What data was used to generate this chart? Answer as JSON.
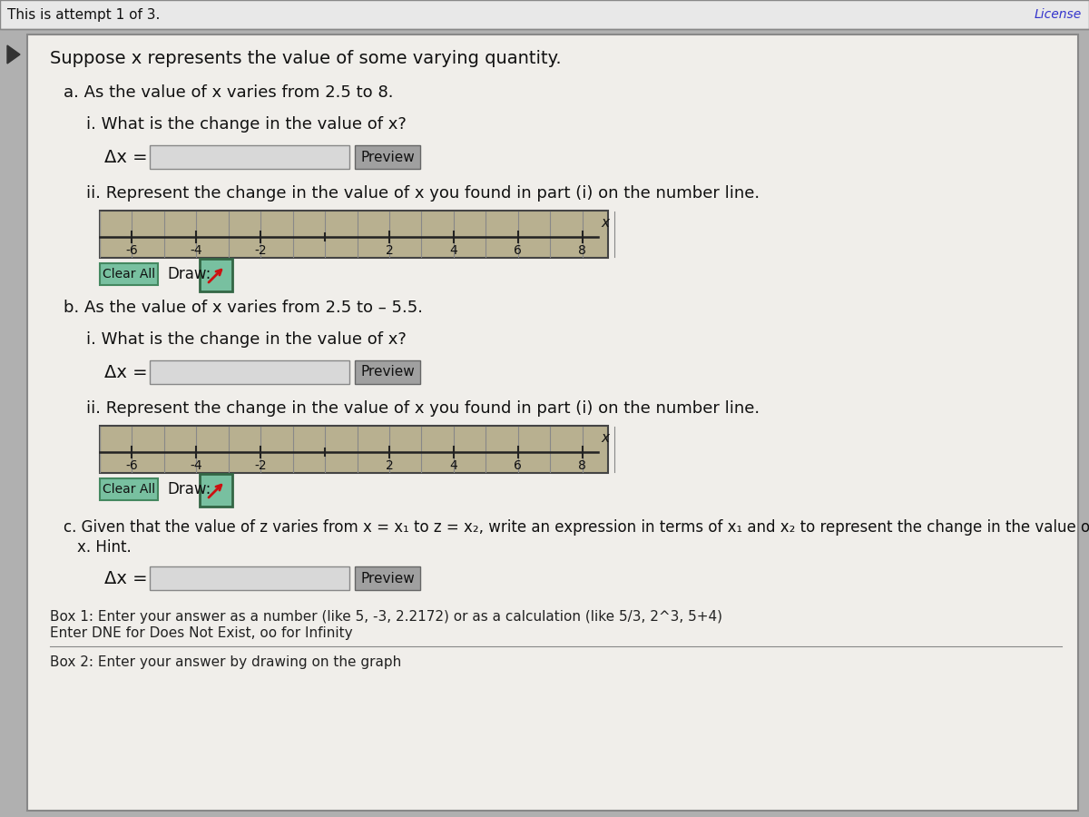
{
  "bg_outer": "#b0b0b0",
  "bg_title_bar": "#e8e8e8",
  "bg_content": "#dcdcdc",
  "bg_white_panel": "#f0eeea",
  "title_text": "This is attempt 1 of 3.",
  "license_text": "License",
  "header_text": "Suppose x represents the value of some varying quantity.",
  "part_a_text": "a. As the value of x varies from 2.5 to 8.",
  "part_a_i": "i. What is the change in the value of x?",
  "part_a_ii": "ii. Represent the change in the value of x you found in part (i) on the number line.",
  "part_b_text": "b. As the value of x varies from 2.5 to – 5.5.",
  "part_b_i": "i. What is the change in the value of x?",
  "part_b_ii": "ii. Represent the change in the value of x you found in part (i) on the number line.",
  "part_c_line1": "c. Given that the value of z varies from x = x₁ to z = x₂, write an expression in terms of x₁ and x₂ to represent the change in the value of",
  "part_c_line2": "x. Hint.",
  "delta_x": "Δx =",
  "preview": "Preview",
  "clear_all": "Clear All",
  "draw_label": "Draw:",
  "box1_line1": "Box 1: Enter your answer as a number (like 5, -3, 2.2172) or as a calculation (like 5/3, 2^3, 5+4)",
  "box1_line2": "Enter DNE for Does Not Exist, oo for Infinity",
  "box2_text": "Box 2: Enter your answer by drawing on the graph",
  "nl_ticks": [
    -6,
    -4,
    -2,
    0,
    2,
    4,
    6,
    8
  ],
  "nl_labels": [
    "-6",
    "-4",
    "-2",
    "",
    "2",
    "4",
    "6",
    "8"
  ],
  "nl_bg": "#b8b090",
  "nl_border": "#444444",
  "nl_line_color": "#222222",
  "nl_tick_color": "#222222",
  "nl_label_color": "#111111",
  "input_bg": "#d8d8d8",
  "input_border": "#888888",
  "preview_bg": "#a0a0a0",
  "preview_border": "#666666",
  "clear_bg": "#78c0a0",
  "clear_border": "#448860",
  "draw_box_bg": "#78c0a0",
  "draw_box_border": "#336644",
  "arrow_color": "#cc1111",
  "text_color": "#111111",
  "link_color": "#3333cc",
  "title_color": "#111111",
  "panel_border": "#888888",
  "separator_color": "#888888"
}
